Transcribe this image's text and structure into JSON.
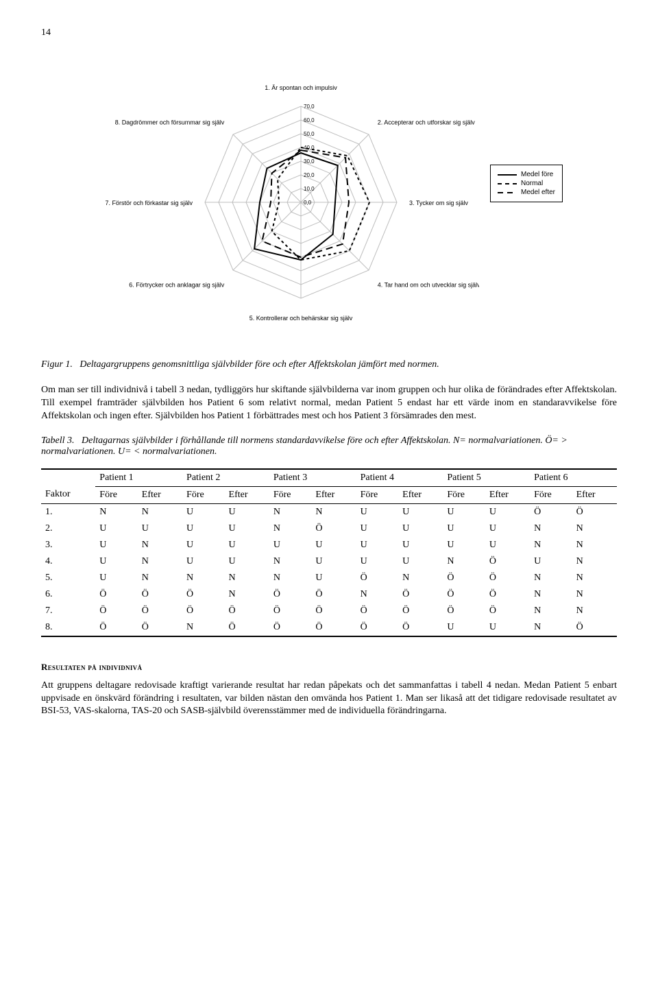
{
  "page_number": "14",
  "radar_chart": {
    "type": "radar",
    "axes": [
      "1. Är spontan och impulsiv",
      "2. Accepterar och utforskar sig själv",
      "3. Tycker om sig själv",
      "4. Tar hand om och utvecklar sig själv",
      "5. Kontrollerar och behärskar sig själv",
      "6. Förtrycker och anklagar sig själv",
      "7. Förstör och förkastar sig själv",
      "8. Dagdrömmer och försummar sig själv"
    ],
    "ticks": [
      "0,0",
      "10,0",
      "20,0",
      "30,0",
      "40,0",
      "50,0",
      "60,0",
      "70,0"
    ],
    "series": [
      {
        "name": "Medel före",
        "style": "solid",
        "values": [
          36,
          38,
          25,
          33,
          42,
          48,
          30,
          35
        ]
      },
      {
        "name": "Normal",
        "style": "short-dash",
        "values": [
          40,
          48,
          50,
          50,
          42,
          30,
          16,
          24
        ]
      },
      {
        "name": "Medel efter",
        "style": "long-dash",
        "values": [
          38,
          46,
          35,
          43,
          40,
          40,
          22,
          30
        ]
      }
    ],
    "max": 70,
    "grid_color": "#bdbdbd",
    "axis_color": "#bdbdbd",
    "line_color": "#000000",
    "background_color": "#ffffff",
    "label_fontsize": 9,
    "tick_fontsize": 8
  },
  "legend": {
    "items": [
      "Medel före",
      "Normal",
      "Medel efter"
    ]
  },
  "figure1": {
    "label": "Figur 1.",
    "caption": "Deltagargruppens genomsnittliga självbilder före och efter Affektskolan jämfört med normen."
  },
  "para1": "Om man ser till individnivå i tabell 3 nedan, tydliggörs hur skiftande självbilderna var inom gruppen och hur olika de förändrades efter Affektskolan. Till exempel framträder självbilden hos Patient 6 som relativt normal, medan Patient 5 endast har ett värde inom en standaravvikelse före Affektskolan och ingen efter. Självbilden hos Patient 1 förbättrades mest och hos Patient 3 försämrades den mest.",
  "table3": {
    "label": "Tabell 3.",
    "caption": "Deltagarnas självbilder i förhållande till normens standardavvikelse före och efter Affektskolan. N= normalvariationen. Ö= > normalvariationen. U= < normalvariationen.",
    "patients": [
      "Patient 1",
      "Patient 2",
      "Patient 3",
      "Patient 4",
      "Patient 5",
      "Patient 6"
    ],
    "subheads": [
      "Före",
      "Efter"
    ],
    "row_label_head": "Faktor",
    "rows": [
      {
        "f": "1.",
        "c": [
          "N",
          "N",
          "U",
          "U",
          "N",
          "N",
          "U",
          "U",
          "U",
          "U",
          "Ö",
          "Ö"
        ]
      },
      {
        "f": "2.",
        "c": [
          "U",
          "U",
          "U",
          "U",
          "N",
          "Ö",
          "U",
          "U",
          "U",
          "U",
          "N",
          "N"
        ]
      },
      {
        "f": "3.",
        "c": [
          "U",
          "N",
          "U",
          "U",
          "U",
          "U",
          "U",
          "U",
          "U",
          "U",
          "N",
          "N"
        ]
      },
      {
        "f": "4.",
        "c": [
          "U",
          "N",
          "U",
          "U",
          "N",
          "U",
          "U",
          "U",
          "N",
          "Ö",
          "U",
          "N"
        ]
      },
      {
        "f": "5.",
        "c": [
          "U",
          "N",
          "N",
          "N",
          "N",
          "U",
          "Ö",
          "N",
          "Ö",
          "Ö",
          "N",
          "N"
        ]
      },
      {
        "f": "6.",
        "c": [
          "Ö",
          "Ö",
          "Ö",
          "N",
          "Ö",
          "Ö",
          "N",
          "Ö",
          "Ö",
          "Ö",
          "N",
          "N"
        ]
      },
      {
        "f": "7.",
        "c": [
          "Ö",
          "Ö",
          "Ö",
          "Ö",
          "Ö",
          "Ö",
          "Ö",
          "Ö",
          "Ö",
          "Ö",
          "N",
          "N"
        ]
      },
      {
        "f": "8.",
        "c": [
          "Ö",
          "Ö",
          "N",
          "Ö",
          "Ö",
          "Ö",
          "Ö",
          "Ö",
          "U",
          "U",
          "N",
          "Ö"
        ]
      }
    ]
  },
  "section_heading": "Resultaten på individnivå",
  "para2": "Att gruppens deltagare redovisade kraftigt varierande resultat har redan påpekats och det sammanfattas i tabell 4 nedan. Medan Patient 5 enbart uppvisade en önskvärd förändring i resultaten, var bilden nästan den omvända hos Patient 1. Man ser likaså att det tidigare redovisade resultatet av BSI-53, VAS-skalorna, TAS-20 och SASB-självbild överensstämmer med de individuella förändringarna."
}
